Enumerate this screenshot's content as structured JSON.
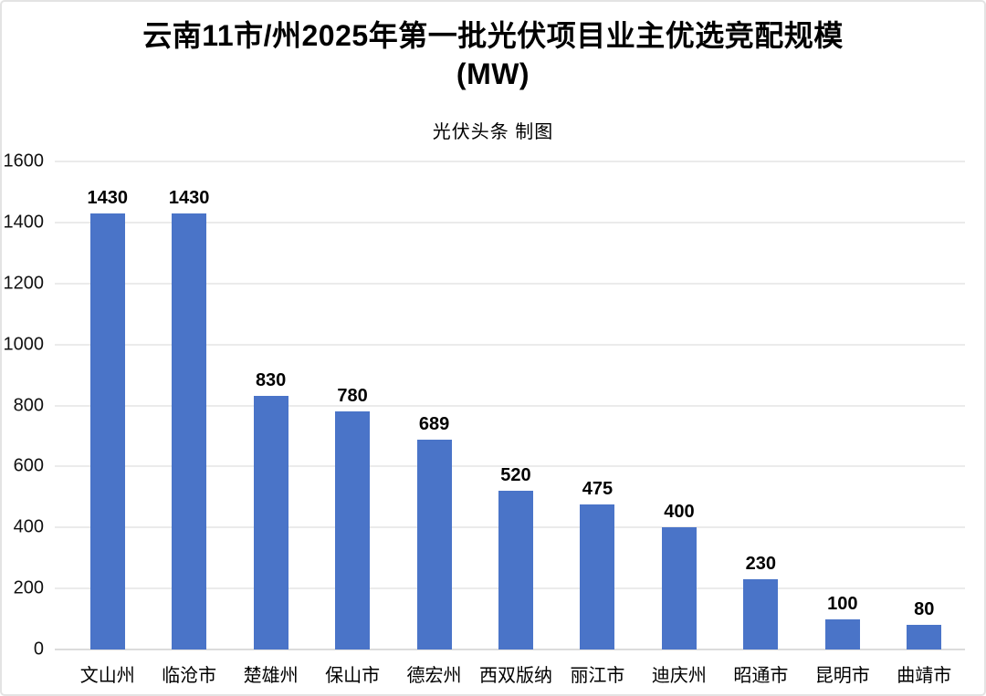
{
  "page": {
    "background": "#ffffff",
    "border_color": "#e3e3e3"
  },
  "header": {
    "title": "云南11市/州2025年第一批光伏项目业主优选竞配规模",
    "title_unit": "(MW)",
    "subtitle": "光伏头条 制图"
  },
  "chart_data": {
    "type": "bar",
    "title": "云南11市/州2025年第一批光伏项目业主优选竞配规模 (MW)",
    "subtitle": "光伏头条 制图",
    "categories": [
      "文山州",
      "临沧市",
      "楚雄州",
      "保山市",
      "德宏州",
      "西双版纳",
      "丽江市",
      "迪庆州",
      "昭通市",
      "昆明市",
      "曲靖市"
    ],
    "values": [
      1430,
      1430,
      830,
      780,
      689,
      520,
      475,
      400,
      230,
      100,
      80
    ],
    "xlabel": "",
    "ylabel": "",
    "ylim": [
      0,
      1600
    ],
    "yticks": [
      0,
      200,
      400,
      600,
      800,
      1000,
      1200,
      1400,
      1600
    ],
    "bar_color": "#4a74c8",
    "grid": true,
    "legend_position": "none"
  }
}
